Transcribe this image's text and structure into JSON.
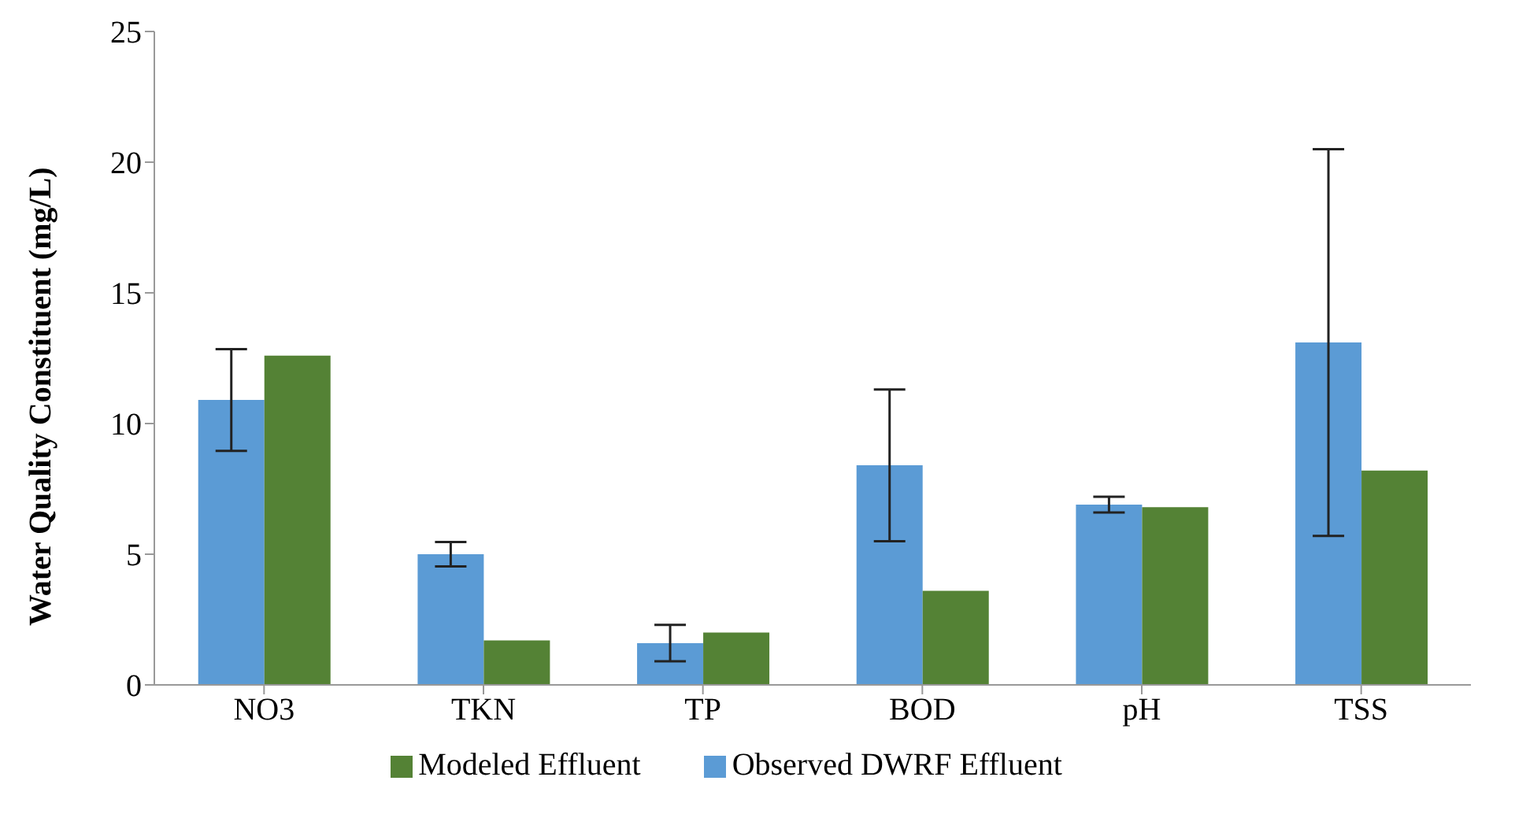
{
  "chart_data": {
    "type": "bar",
    "ylabel": "Water Quality Constituent (mg/L)",
    "categories": [
      "NO3",
      "TKN",
      "TP",
      "BOD",
      "pH",
      "TSS"
    ],
    "series": [
      {
        "name": "Observed DWRF Effluent",
        "color": "#5b9bd5",
        "values": [
          10.9,
          5.0,
          1.6,
          8.4,
          6.9,
          13.1
        ],
        "errors": [
          1.95,
          0.47,
          0.7,
          2.9,
          0.3,
          7.4
        ]
      },
      {
        "name": "Modeled Effluent",
        "color": "#548235",
        "values": [
          12.6,
          1.7,
          2.0,
          3.6,
          6.8,
          8.2
        ]
      }
    ],
    "ylim": [
      0,
      25
    ],
    "yticks": [
      0,
      5,
      10,
      15,
      20,
      25
    ],
    "grid": false,
    "legend": "bottom"
  }
}
